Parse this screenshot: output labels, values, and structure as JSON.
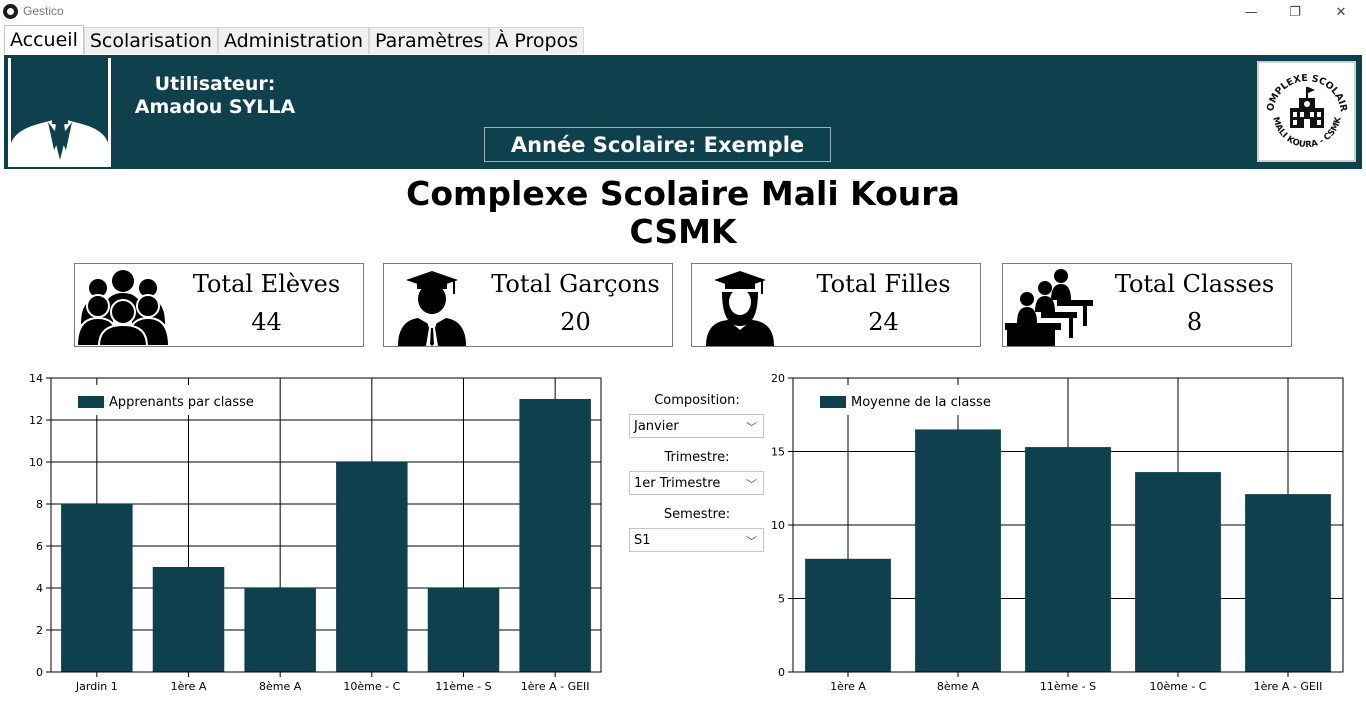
{
  "window": {
    "title": "Gestico",
    "minimize": "—",
    "maximize": "❐",
    "close": "✕"
  },
  "menu": [
    {
      "label": "Accueil",
      "active": true
    },
    {
      "label": "Scolarisation"
    },
    {
      "label": "Administration"
    },
    {
      "label": "Paramètres"
    },
    {
      "label": "À Propos"
    }
  ],
  "header": {
    "user_label": "Utilisateur:",
    "user_name": "Amadou SYLLA",
    "school_year": "Année Scolaire: Exemple",
    "logo_text_top": "COMPLEXE SCOLAIRE",
    "logo_text_bottom": "MALI KOURA - CSMK",
    "accent_color": "#0f404d"
  },
  "school": {
    "name": "Complexe Scolaire Mali Koura",
    "acronym": "CSMK"
  },
  "stats": [
    {
      "label": "Total Elèves",
      "value": "44",
      "icon": "group-people-icon"
    },
    {
      "label": "Total Garçons",
      "value": "20",
      "icon": "male-graduate-icon"
    },
    {
      "label": "Total Filles",
      "value": "24",
      "icon": "female-graduate-icon"
    },
    {
      "label": "Total Classes",
      "value": "8",
      "icon": "classroom-icon"
    }
  ],
  "filters": {
    "composition": {
      "label": "Composition:",
      "value": "Janvier"
    },
    "trimestre": {
      "label": "Trimestre:",
      "value": "1er Trimestre"
    },
    "semestre": {
      "label": "Semestre:",
      "value": "S1"
    }
  },
  "chart_data": [
    {
      "type": "bar",
      "categories": [
        "Jardin 1",
        "1ère A",
        "8ème A",
        "10ème - C",
        "11ème - S",
        "1ère A - GEII"
      ],
      "series": [
        {
          "name": "Apprenants par classe",
          "values": [
            8,
            5,
            4,
            10,
            4,
            13
          ],
          "color": "#0f404d"
        }
      ],
      "ylim": [
        0,
        14
      ],
      "yticks": [
        0,
        2,
        4,
        6,
        8,
        10,
        12,
        14
      ],
      "grid": true,
      "legend": "top-left"
    },
    {
      "type": "bar",
      "categories": [
        "1ère A",
        "8ème A",
        "11ème - S",
        "10ème - C",
        "1ère A - GEII"
      ],
      "series": [
        {
          "name": "Moyenne de la classe",
          "values": [
            7.7,
            16.5,
            15.3,
            13.6,
            12.1
          ],
          "color": "#0f404d"
        }
      ],
      "ylim": [
        0,
        20
      ],
      "yticks": [
        0,
        5,
        10,
        15,
        20
      ],
      "grid": true,
      "legend": "top-left"
    }
  ]
}
